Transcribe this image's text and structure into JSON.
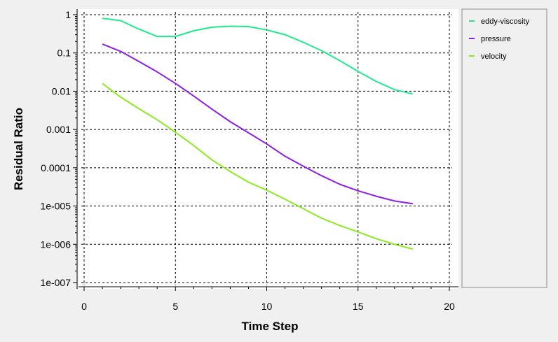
{
  "chart_data": {
    "type": "line",
    "xlabel": "Time Step",
    "ylabel": "Residual Ratio",
    "xlim": [
      0,
      20
    ],
    "ylim": [
      1e-07,
      1
    ],
    "yscale": "log",
    "grid": true,
    "legend_placement": "right",
    "x_ticks": [
      0,
      5,
      10,
      15,
      20
    ],
    "x_tick_labels": [
      "0",
      "5",
      "10",
      "15",
      "20"
    ],
    "y_ticks": [
      1,
      0.1,
      0.01,
      0.001,
      0.0001,
      1e-05,
      1e-06,
      1e-07
    ],
    "y_tick_labels": [
      "1",
      "0.1",
      "0.01",
      "0.001",
      "0.0001",
      "1e-005",
      "1e-006",
      "1e-007"
    ],
    "series": [
      {
        "name": "eddy-viscosity",
        "color": "#1eeb8c",
        "x": [
          1,
          2,
          3,
          4,
          5,
          6,
          7,
          8,
          9,
          10,
          11,
          12,
          13,
          14,
          15,
          16,
          17,
          18
        ],
        "y": [
          0.8,
          0.7,
          0.42,
          0.27,
          0.27,
          0.38,
          0.47,
          0.5,
          0.49,
          0.4,
          0.3,
          0.19,
          0.115,
          0.063,
          0.033,
          0.018,
          0.011,
          0.0085
        ]
      },
      {
        "name": "pressure",
        "color": "#8c1eeb",
        "x": [
          1,
          2,
          3,
          4,
          5,
          6,
          7,
          8,
          9,
          10,
          11,
          12,
          13,
          14,
          15,
          16,
          17,
          18
        ],
        "y": [
          0.17,
          0.11,
          0.06,
          0.032,
          0.016,
          0.0075,
          0.0034,
          0.0016,
          0.00082,
          0.00042,
          0.0002,
          0.00011,
          6.2e-05,
          3.7e-05,
          2.5e-05,
          1.8e-05,
          1.35e-05,
          1.15e-05
        ]
      },
      {
        "name": "velocity",
        "color": "#8ceb1e",
        "x": [
          1,
          2,
          3,
          4,
          5,
          6,
          7,
          8,
          9,
          10,
          11,
          12,
          13,
          14,
          15,
          16,
          17,
          18
        ],
        "y": [
          0.016,
          0.007,
          0.0035,
          0.0018,
          0.00085,
          0.00038,
          0.00016,
          8e-05,
          4.2e-05,
          2.6e-05,
          1.5e-05,
          8.5e-06,
          4.8e-06,
          3.1e-06,
          2.1e-06,
          1.4e-06,
          1e-06,
          7.5e-07
        ]
      }
    ]
  }
}
